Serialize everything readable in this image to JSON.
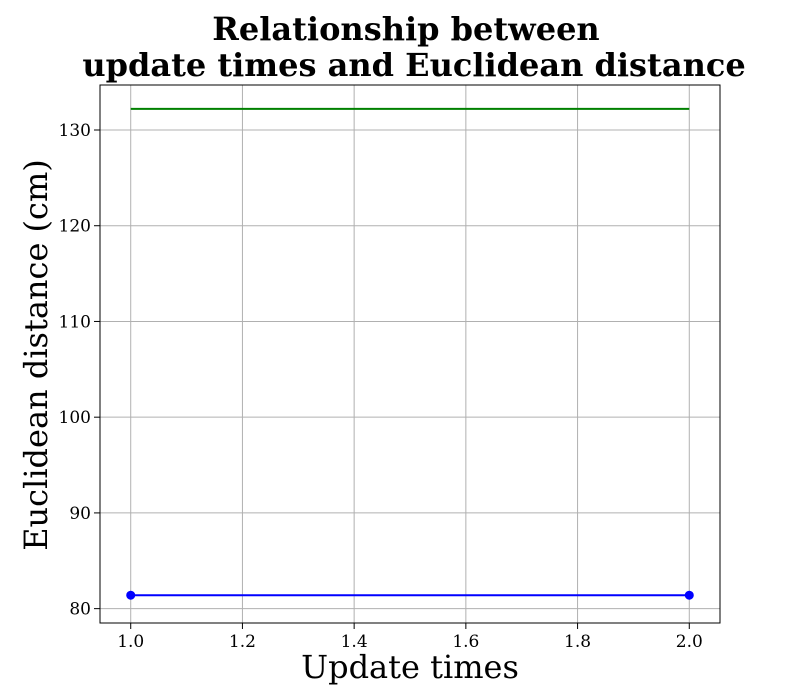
{
  "chart_data": {
    "type": "line",
    "title_lines": [
      "Relationship between",
      "update times and Euclidean distance"
    ],
    "xlabel": "Update times",
    "ylabel": "Euclidean distance (cm)",
    "xlim": [
      0.945,
      2.055
    ],
    "ylim": [
      78.5,
      134.7
    ],
    "xticks": [
      1.0,
      1.2,
      1.4,
      1.6,
      1.8,
      2.0
    ],
    "xtick_labels": [
      "1.0",
      "1.2",
      "1.4",
      "1.6",
      "1.8",
      "2.0"
    ],
    "yticks": [
      80,
      90,
      100,
      110,
      120,
      130
    ],
    "ytick_labels": [
      "80",
      "90",
      "100",
      "110",
      "120",
      "130"
    ],
    "grid": true,
    "series": [
      {
        "x": [
          1.0,
          2.0
        ],
        "y": [
          132.2,
          132.2
        ],
        "color": "#008000",
        "markers": false
      },
      {
        "x": [
          1.0,
          2.0
        ],
        "y": [
          81.4,
          81.4
        ],
        "color": "#0000ff",
        "markers": true
      }
    ]
  }
}
